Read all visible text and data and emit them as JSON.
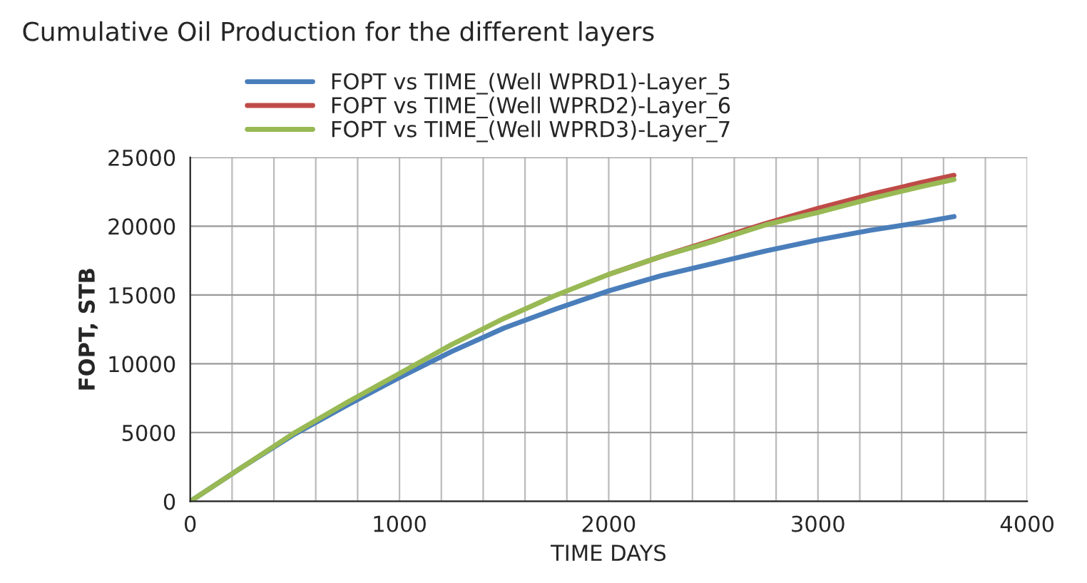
{
  "chart_data": {
    "type": "line",
    "title": "Cumulative Oil Production for the different layers",
    "xlabel": "TIME DAYS",
    "ylabel": "FOPT, STB",
    "x": [
      0,
      250,
      500,
      750,
      1000,
      1250,
      1500,
      1750,
      2000,
      2250,
      2500,
      2750,
      3000,
      3250,
      3500,
      3650
    ],
    "series": [
      {
        "name": "FOPT vs TIME_(Well WPRD1)-Layer_5",
        "color": "#4a7ebb",
        "values": [
          0,
          2500,
          4900,
          7000,
          9000,
          10900,
          12600,
          14000,
          15300,
          16400,
          17300,
          18200,
          19000,
          19700,
          20300,
          20700
        ]
      },
      {
        "name": "FOPT vs TIME_(Well WPRD2)-Layer_6",
        "color": "#be4b48",
        "values": [
          null,
          null,
          null,
          null,
          null,
          null,
          null,
          null,
          16500,
          17800,
          19000,
          20200,
          21300,
          22300,
          23200,
          23700
        ]
      },
      {
        "name": "FOPT vs TIME_(Well WPRD3)-Layer_7",
        "color": "#98b954",
        "values": [
          0,
          2500,
          5000,
          7200,
          9300,
          11400,
          13300,
          15000,
          16500,
          17800,
          18900,
          20100,
          21000,
          22000,
          22900,
          23400
        ]
      }
    ],
    "xlim": [
      0,
      4000
    ],
    "xticks": [
      0,
      1000,
      2000,
      3000,
      4000
    ],
    "ylim": [
      0,
      25000
    ],
    "yticks": [
      0,
      5000,
      10000,
      15000,
      20000,
      25000
    ],
    "grid": true,
    "legend": "top",
    "marker": "none",
    "line_style": "solid"
  }
}
